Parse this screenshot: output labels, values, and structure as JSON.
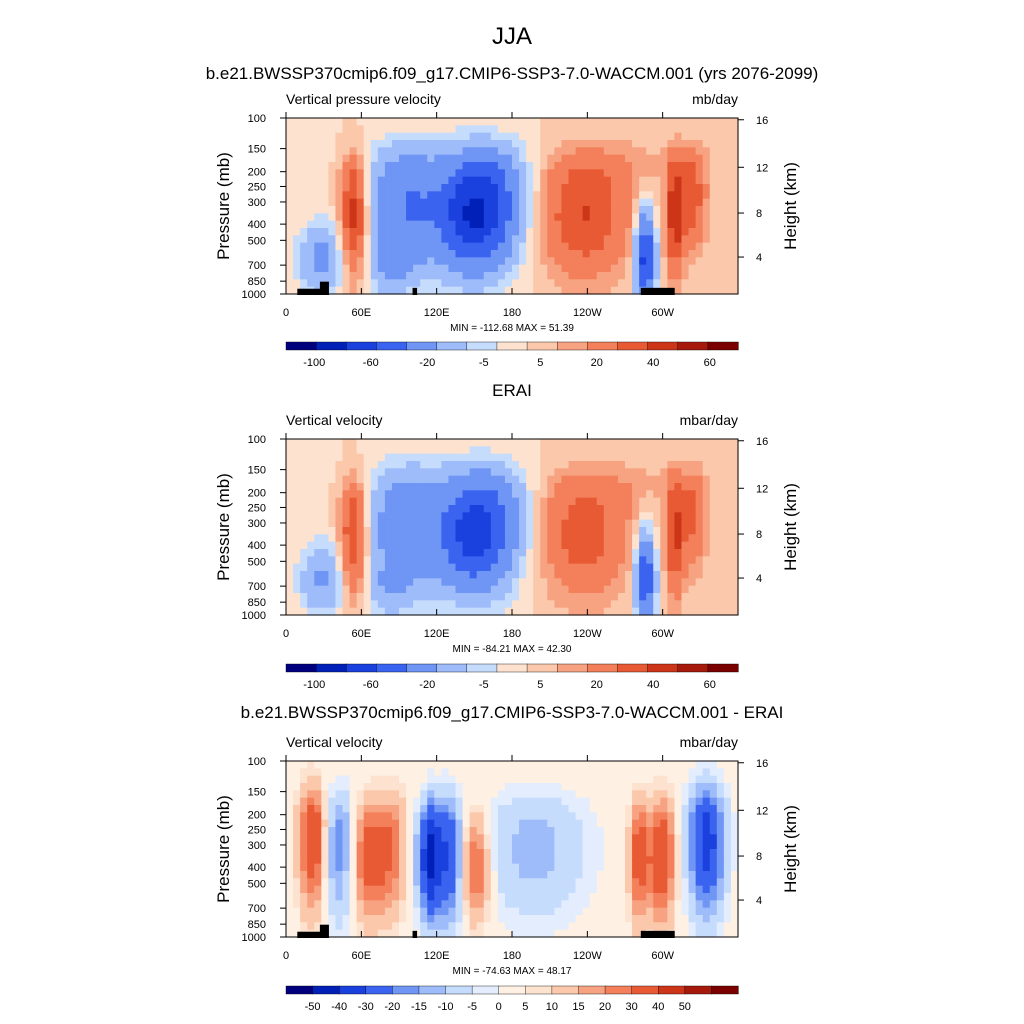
{
  "page": {
    "season": "JJA",
    "title": "b.e21.BWSSP370cmip6.f09_g17.CMIP6-SSP3-7.0-WACCM.001 (yrs 2076-2099)"
  },
  "colors": {
    "full_scale": [
      "#00007f",
      "#0020b8",
      "#1a40dd",
      "#3a64f0",
      "#6f95f5",
      "#9fbcfa",
      "#c6dcfd",
      "#fde3cf",
      "#fbc8ab",
      "#f7a382",
      "#f3805a",
      "#e85a34",
      "#cd3519",
      "#a51a0a",
      "#7a0000"
    ],
    "diff_scale": [
      "#00007f",
      "#0020b8",
      "#1a40dd",
      "#3a64f0",
      "#6f95f5",
      "#9fbcfa",
      "#c6dcfd",
      "#e3edfe",
      "#fef0e3",
      "#fde3cf",
      "#fbc8ab",
      "#f7a382",
      "#f3805a",
      "#e85a34",
      "#cd3519",
      "#a51a0a",
      "#7a0000"
    ]
  },
  "chart_data": [
    {
      "type": "heatmap",
      "title": "",
      "left_string": "Vertical pressure velocity",
      "right_string": "mb/day",
      "ylabel": "Pressure (mb)",
      "y2label": "Height (km)",
      "x_ticks": [
        "0",
        "60E",
        "120E",
        "180",
        "120W",
        "60W"
      ],
      "y_ticks": [
        "100",
        "150",
        "200",
        "250",
        "300",
        "400",
        "500",
        "700",
        "850",
        "1000"
      ],
      "y2_ticks": [
        "16",
        "12",
        "8",
        "4"
      ],
      "stats": "MIN = -112.68  MAX =  51.39",
      "colorbar_labels": [
        "-100",
        "-60",
        "-20",
        "-5",
        "5",
        "20",
        "40",
        "60"
      ],
      "min": -112.68,
      "max": 51.39
    },
    {
      "type": "heatmap",
      "title": "ERAI",
      "left_string": "Vertical velocity",
      "right_string": "mbar/day",
      "ylabel": "Pressure (mb)",
      "y2label": "Height (km)",
      "x_ticks": [
        "0",
        "60E",
        "120E",
        "180",
        "120W",
        "60W"
      ],
      "y_ticks": [
        "100",
        "150",
        "200",
        "250",
        "300",
        "400",
        "500",
        "700",
        "850",
        "1000"
      ],
      "y2_ticks": [
        "16",
        "12",
        "8",
        "4"
      ],
      "stats": "MIN = -84.21  MAX = 42.30",
      "colorbar_labels": [
        "-100",
        "-60",
        "-20",
        "-5",
        "5",
        "20",
        "40",
        "60"
      ],
      "min": -84.21,
      "max": 42.3
    },
    {
      "type": "heatmap",
      "title": "b.e21.BWSSP370cmip6.f09_g17.CMIP6-SSP3-7.0-WACCM.001 - ERAI",
      "left_string": "Vertical velocity",
      "right_string": "mbar/day",
      "ylabel": "Pressure (mb)",
      "y2label": "Height (km)",
      "x_ticks": [
        "0",
        "60E",
        "120E",
        "180",
        "120W",
        "60W"
      ],
      "y_ticks": [
        "100",
        "150",
        "200",
        "250",
        "300",
        "400",
        "500",
        "700",
        "850",
        "1000"
      ],
      "y2_ticks": [
        "16",
        "12",
        "8",
        "4"
      ],
      "stats": "MIN = -74.63  MAX = 48.17",
      "colorbar_labels": [
        "-50",
        "-40",
        "-30",
        "-20",
        "-15",
        "-10",
        "-5",
        "0",
        "5",
        "10",
        "15",
        "20",
        "30",
        "40",
        "50"
      ],
      "min": -74.63,
      "max": 48.17
    }
  ]
}
